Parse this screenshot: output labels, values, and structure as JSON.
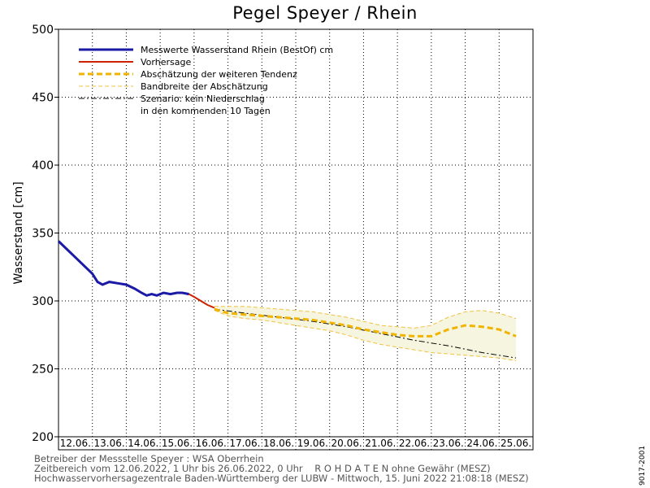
{
  "title": "Pegel Speyer / Rhein",
  "ylabel": "Wasserstand [cm]",
  "side_code": "9017-2001",
  "footer": {
    "line1": "Betreiber der Messstelle Speyer : WSA Oberrhein",
    "line2": "Zeitbereich vom 12.06.2022, 1 Uhr bis 26.06.2022, 0 Uhr    R O H D A T E N ohne Gewähr (MESZ)",
    "line3": "Hochwasservorhersagezentrale Baden-Württemberg der LUBW - Mittwoch, 15. Juni 2022 21:08:18 (MESZ)"
  },
  "colors": {
    "measured": "#1a1aa6",
    "forecast": "#cc2200",
    "tendency": "#f0b400",
    "band_line": "#f0c040",
    "band_fill": "#f6f6e0",
    "scenario": "#000000"
  },
  "chart_data": {
    "type": "line",
    "title": "Pegel Speyer / Rhein",
    "xlabel": "",
    "ylabel": "Wasserstand [cm]",
    "ylim": [
      200,
      500
    ],
    "yticks": [
      200,
      250,
      300,
      350,
      400,
      450,
      500
    ],
    "xlim_days": [
      12.0,
      26.0
    ],
    "x_categories": [
      "12.06.",
      "13.06.",
      "14.06.",
      "15.06.",
      "16.06.",
      "17.06.",
      "18.06.",
      "19.06.",
      "20.06.",
      "21.06.",
      "22.06.",
      "23.06.",
      "24.06.",
      "25.06."
    ],
    "grid": true,
    "legend_position": "top-left",
    "series": [
      {
        "name": "Messwerte Wasserstand Rhein (BestOf)   cm",
        "style": "measured",
        "x": [
          12.0,
          12.25,
          12.5,
          12.75,
          13.0,
          13.15,
          13.3,
          13.5,
          13.75,
          14.0,
          14.25,
          14.45,
          14.6,
          14.75,
          14.9,
          15.1,
          15.3,
          15.5,
          15.65,
          15.85
        ],
        "y": [
          344,
          338,
          332,
          326,
          320,
          314,
          312,
          314,
          313,
          312,
          309,
          306,
          304,
          305,
          304,
          306,
          305,
          306,
          306,
          305
        ]
      },
      {
        "name": "Vorhersage",
        "style": "forecast",
        "x": [
          15.85,
          16.0,
          16.2,
          16.4,
          16.6
        ],
        "y": [
          305,
          303,
          300,
          297,
          295
        ]
      },
      {
        "name": "Abschätzung der weiteren Tendenz",
        "style": "tendency",
        "x": [
          16.6,
          17.0,
          17.5,
          18.0,
          18.5,
          19.0,
          19.5,
          20.0,
          20.5,
          21.0,
          21.5,
          22.0,
          22.5,
          23.0,
          23.5,
          24.0,
          24.5,
          25.0,
          25.5
        ],
        "y": [
          294,
          291,
          290,
          289,
          288,
          287,
          286,
          284,
          282,
          279,
          277,
          275,
          274,
          274,
          279,
          282,
          281,
          279,
          274
        ]
      },
      {
        "name": "Bandbreite der Abschätzung",
        "style": "band",
        "x": [
          16.6,
          17.0,
          17.5,
          18.0,
          18.5,
          19.0,
          19.5,
          20.0,
          20.5,
          21.0,
          21.5,
          22.0,
          22.5,
          23.0,
          23.5,
          24.0,
          24.5,
          25.0,
          25.5
        ],
        "upper": [
          296,
          296,
          296,
          295,
          294,
          293,
          292,
          290,
          288,
          285,
          282,
          281,
          280,
          282,
          288,
          292,
          293,
          291,
          287
        ],
        "lower": [
          293,
          289,
          287,
          286,
          284,
          282,
          280,
          278,
          275,
          271,
          268,
          266,
          264,
          262,
          261,
          260,
          259,
          258,
          256
        ]
      },
      {
        "name": "Szenario: kein Niederschlag\nin den kommenden 10 Tagen",
        "style": "scenario",
        "x": [
          16.6,
          17.5,
          18.5,
          19.5,
          20.5,
          21.5,
          22.5,
          23.5,
          24.5,
          25.5
        ],
        "y": [
          294,
          291,
          288,
          285,
          281,
          276,
          271,
          267,
          262,
          258
        ]
      }
    ]
  }
}
